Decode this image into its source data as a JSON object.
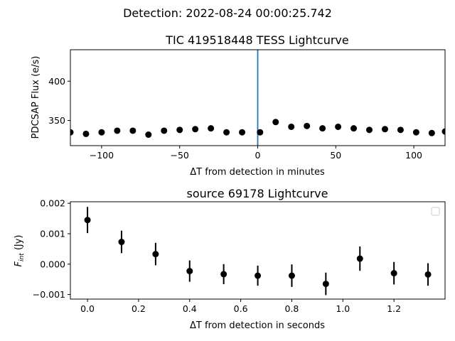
{
  "figure_title": "Detection: 2022-08-24 00:00:25.742",
  "colors": {
    "marker": "#000000",
    "detection_line": "#1f77b4"
  },
  "chart_data": [
    {
      "type": "scatter",
      "title": "TIC 419518448 TESS Lightcurve",
      "xlabel": "ΔT from detection in minutes",
      "ylabel": "PDCSAP Flux (e/s)",
      "xlim": [
        -120,
        120
      ],
      "ylim": [
        318,
        440
      ],
      "xticks": [
        -100,
        -50,
        0,
        50,
        100
      ],
      "xtick_labels": [
        "−100",
        "−50",
        "0",
        "50",
        "100"
      ],
      "yticks": [
        350,
        400
      ],
      "ytick_labels": [
        "350",
        "400"
      ],
      "vline_x": 0,
      "x": [
        -120,
        -110,
        -100,
        -90,
        -80,
        -70,
        -60,
        -50,
        -40,
        -30,
        -20,
        -10,
        1.5,
        11.5,
        21.5,
        31.5,
        41.5,
        51.5,
        61.5,
        71.5,
        81.5,
        91.5,
        101.5,
        111.5,
        120
      ],
      "y": [
        335,
        333,
        335,
        337,
        337,
        332,
        337,
        338,
        339,
        340,
        335,
        335,
        335,
        348,
        342,
        343,
        340,
        342,
        340,
        338,
        339,
        338,
        335,
        334,
        336
      ]
    },
    {
      "type": "scatter",
      "title": "source 69178 Lightcurve",
      "xlabel": "ΔT from detection in seconds",
      "ylabel_main": "F",
      "ylabel_sub": "int",
      "ylabel_unit": " (Jy)",
      "xlim": [
        -0.067,
        1.4
      ],
      "ylim": [
        -0.00115,
        0.00205
      ],
      "xticks": [
        0.0,
        0.2,
        0.4,
        0.6,
        0.8,
        1.0,
        1.2
      ],
      "xtick_labels": [
        "0.0",
        "0.2",
        "0.4",
        "0.6",
        "0.8",
        "1.0",
        "1.2"
      ],
      "yticks": [
        -0.001,
        0.0,
        0.001,
        0.002
      ],
      "ytick_labels": [
        "−0.001",
        "0.000",
        "0.001",
        "0.002"
      ],
      "legend": "upper right (empty)",
      "x": [
        0.0,
        0.1333,
        0.2667,
        0.4,
        0.5333,
        0.6667,
        0.8,
        0.9333,
        1.0667,
        1.2,
        1.3333
      ],
      "y": [
        0.00145,
        0.00073,
        0.00033,
        -0.00023,
        -0.00033,
        -0.00038,
        -0.00038,
        -0.00065,
        0.00018,
        -0.0003,
        -0.00034
      ],
      "err": [
        0.00043,
        0.00037,
        0.00037,
        0.00035,
        0.00033,
        0.00033,
        0.00037,
        0.00037,
        0.0004,
        0.00037,
        0.00037
      ]
    }
  ]
}
